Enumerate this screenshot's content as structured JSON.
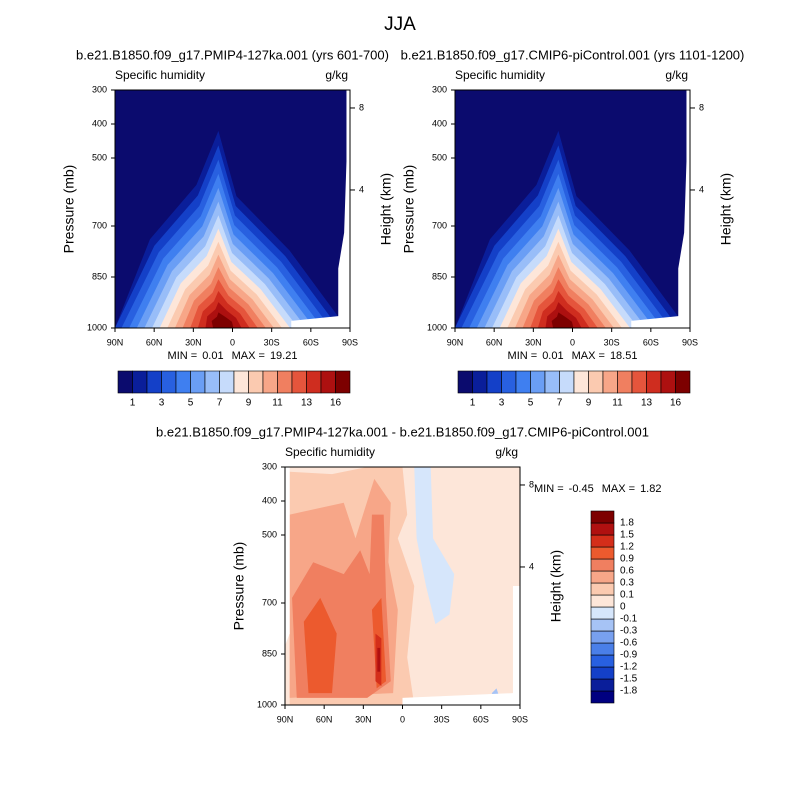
{
  "figure_title": "JJA",
  "chart_data": [
    {
      "type": "contour",
      "title": "b.e21.B1850.f09_g17.PMIP4-127ka.001 (yrs 601-700)",
      "subtitle_left": "Specific humidity",
      "subtitle_right": "g/kg",
      "ylabel": "Pressure (mb)",
      "y2label": "Height (km)",
      "xlim": [
        90,
        -90
      ],
      "xticks": [
        {
          "value": 90,
          "label": "90N"
        },
        {
          "value": 60,
          "label": "60N"
        },
        {
          "value": 30,
          "label": "30N"
        },
        0,
        {
          "value": -30,
          "label": "30S"
        },
        {
          "value": -60,
          "label": "60S"
        },
        {
          "value": -90,
          "label": "90S"
        }
      ],
      "ylim": [
        300,
        1000
      ],
      "yticks": [
        300,
        400,
        500,
        700,
        850,
        1000
      ],
      "y2ticks": [
        8,
        4
      ],
      "min_label": "MIN =",
      "min": 0.01,
      "max_label": "MAX =",
      "max": 19.21,
      "colorbar": {
        "orientation": "horizontal",
        "ticks": [
          1,
          3,
          5,
          7,
          9,
          11,
          13,
          16
        ],
        "colors": [
          "#0b0b6e",
          "#0a1e9a",
          "#1440c8",
          "#2860e0",
          "#3f7ff0",
          "#6a9ef5",
          "#98bdf8",
          "#c6dbfb",
          "#fde6d9",
          "#fbcab0",
          "#f7a688",
          "#f07f60",
          "#e5553c",
          "#cf2d1f",
          "#ad1010",
          "#7d0000"
        ]
      }
    },
    {
      "type": "contour",
      "title": "b.e21.B1850.f09_g17.CMIP6-piControl.001 (yrs 1101-1200)",
      "subtitle_left": "Specific humidity",
      "subtitle_right": "g/kg",
      "ylabel": "Pressure (mb)",
      "y2label": "Height (km)",
      "xlim": [
        90,
        -90
      ],
      "xticks": [
        {
          "value": 90,
          "label": "90N"
        },
        {
          "value": 60,
          "label": "60N"
        },
        {
          "value": 30,
          "label": "30N"
        },
        0,
        {
          "value": -30,
          "label": "30S"
        },
        {
          "value": -60,
          "label": "60S"
        },
        {
          "value": -90,
          "label": "90S"
        }
      ],
      "ylim": [
        300,
        1000
      ],
      "yticks": [
        300,
        400,
        500,
        700,
        850,
        1000
      ],
      "y2ticks": [
        8,
        4
      ],
      "min_label": "MIN =",
      "min": 0.01,
      "max_label": "MAX =",
      "max": 18.51,
      "colorbar": {
        "orientation": "horizontal",
        "ticks": [
          1,
          3,
          5,
          7,
          9,
          11,
          13,
          16
        ],
        "colors": [
          "#0b0b6e",
          "#0a1e9a",
          "#1440c8",
          "#2860e0",
          "#3f7ff0",
          "#6a9ef5",
          "#98bdf8",
          "#c6dbfb",
          "#fde6d9",
          "#fbcab0",
          "#f7a688",
          "#f07f60",
          "#e5553c",
          "#cf2d1f",
          "#ad1010",
          "#7d0000"
        ]
      }
    },
    {
      "type": "contour-diff",
      "title": "b.e21.B1850.f09_g17.PMIP4-127ka.001 - b.e21.B1850.f09_g17.CMIP6-piControl.001",
      "subtitle_left": "Specific humidity",
      "subtitle_right": "g/kg",
      "ylabel": "Pressure (mb)",
      "y2label": "Height (km)",
      "xlim": [
        90,
        -90
      ],
      "xticks": [
        {
          "value": 90,
          "label": "90N"
        },
        {
          "value": 60,
          "label": "60N"
        },
        {
          "value": 30,
          "label": "30N"
        },
        0,
        {
          "value": -30,
          "label": "30S"
        },
        {
          "value": -60,
          "label": "60S"
        },
        {
          "value": -90,
          "label": "90S"
        }
      ],
      "ylim": [
        300,
        1000
      ],
      "yticks": [
        300,
        400,
        500,
        700,
        850,
        1000
      ],
      "y2ticks": [
        8,
        4
      ],
      "min_label": "MIN =",
      "min": -0.45,
      "max_label": "MAX =",
      "max": 1.82,
      "colorbar": {
        "orientation": "vertical",
        "ticks": [
          -1.8,
          -1.5,
          -1.2,
          -0.9,
          -0.6,
          -0.3,
          -0.1,
          0,
          0.1,
          0.3,
          0.6,
          0.9,
          1.2,
          1.5,
          1.8
        ],
        "colors": [
          "#000080",
          "#0a1e9a",
          "#1440c8",
          "#2860e0",
          "#4a7fe8",
          "#78a0ef",
          "#a6c3f5",
          "#d6e6fb",
          "#fde6d9",
          "#fbcab0",
          "#f7a688",
          "#f07f60",
          "#ec5a2e",
          "#d42e1a",
          "#b01010",
          "#7d0000"
        ]
      }
    }
  ]
}
